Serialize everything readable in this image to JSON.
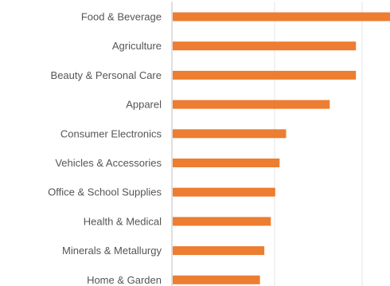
{
  "chart_data": {
    "type": "bar",
    "orientation": "horizontal",
    "title": "",
    "xlabel": "",
    "ylabel": "",
    "categories": [
      "Food & Beverage",
      "Agriculture",
      "Beauty & Personal Care",
      "Apparel",
      "Consumer Electronics",
      "Vehicles & Accessories",
      "Office & School Supplies",
      "Health & Medical",
      "Minerals & Metallurgy",
      "Home & Garden"
    ],
    "values": [
      100,
      84,
      84,
      72,
      52,
      49,
      47,
      45,
      42,
      40
    ],
    "xlim": [
      0,
      100
    ],
    "grid": true,
    "legend": "none",
    "bar_color": "#ED7D31"
  }
}
